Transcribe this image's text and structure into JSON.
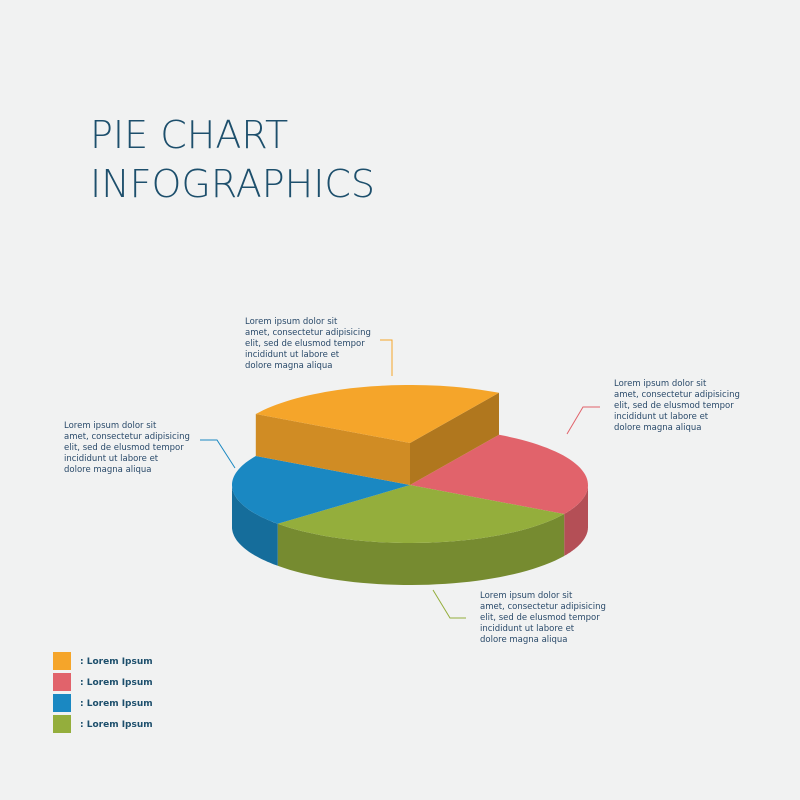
{
  "chart_data": {
    "type": "pie3d",
    "title": [
      "PIE CHART",
      "INFOGRAPHICS"
    ],
    "series": [
      {
        "name": ": Lorem Ipsum",
        "color": "#f5a52a",
        "value": 25
      },
      {
        "name": ": Lorem Ipsum",
        "color": "#e1636b",
        "value": 25
      },
      {
        "name": ": Lorem Ipsum",
        "color": "#1a88c2",
        "value": 20
      },
      {
        "name": ": Lorem Ipsum",
        "color": "#94ae3c",
        "value": 30
      }
    ],
    "annotations": [
      [
        "Lorem ipsum dolor sit",
        "amet, consectetur adipisicing",
        "elit, sed de elusmod tempor",
        "incididunt ut labore et",
        "dolore magna aliqua"
      ],
      [
        "Lorem ipsum dolor sit",
        "amet, consectetur adipisicing",
        "elit, sed de elusmod tempor",
        "incididunt ut labore et",
        "dolore magna aliqua"
      ],
      [
        "Lorem ipsum dolor sit",
        "amet, consectetur adipisicing",
        "elit, sed de elusmod tempor",
        "incididunt ut labore et",
        "dolore magna aliqua"
      ],
      [
        "Lorem ipsum dolor sit",
        "amet, consectetur adipisicing",
        "elit, sed de elusmod tempor",
        "incididunt ut labore et",
        "dolore magna aliqua"
      ]
    ]
  }
}
